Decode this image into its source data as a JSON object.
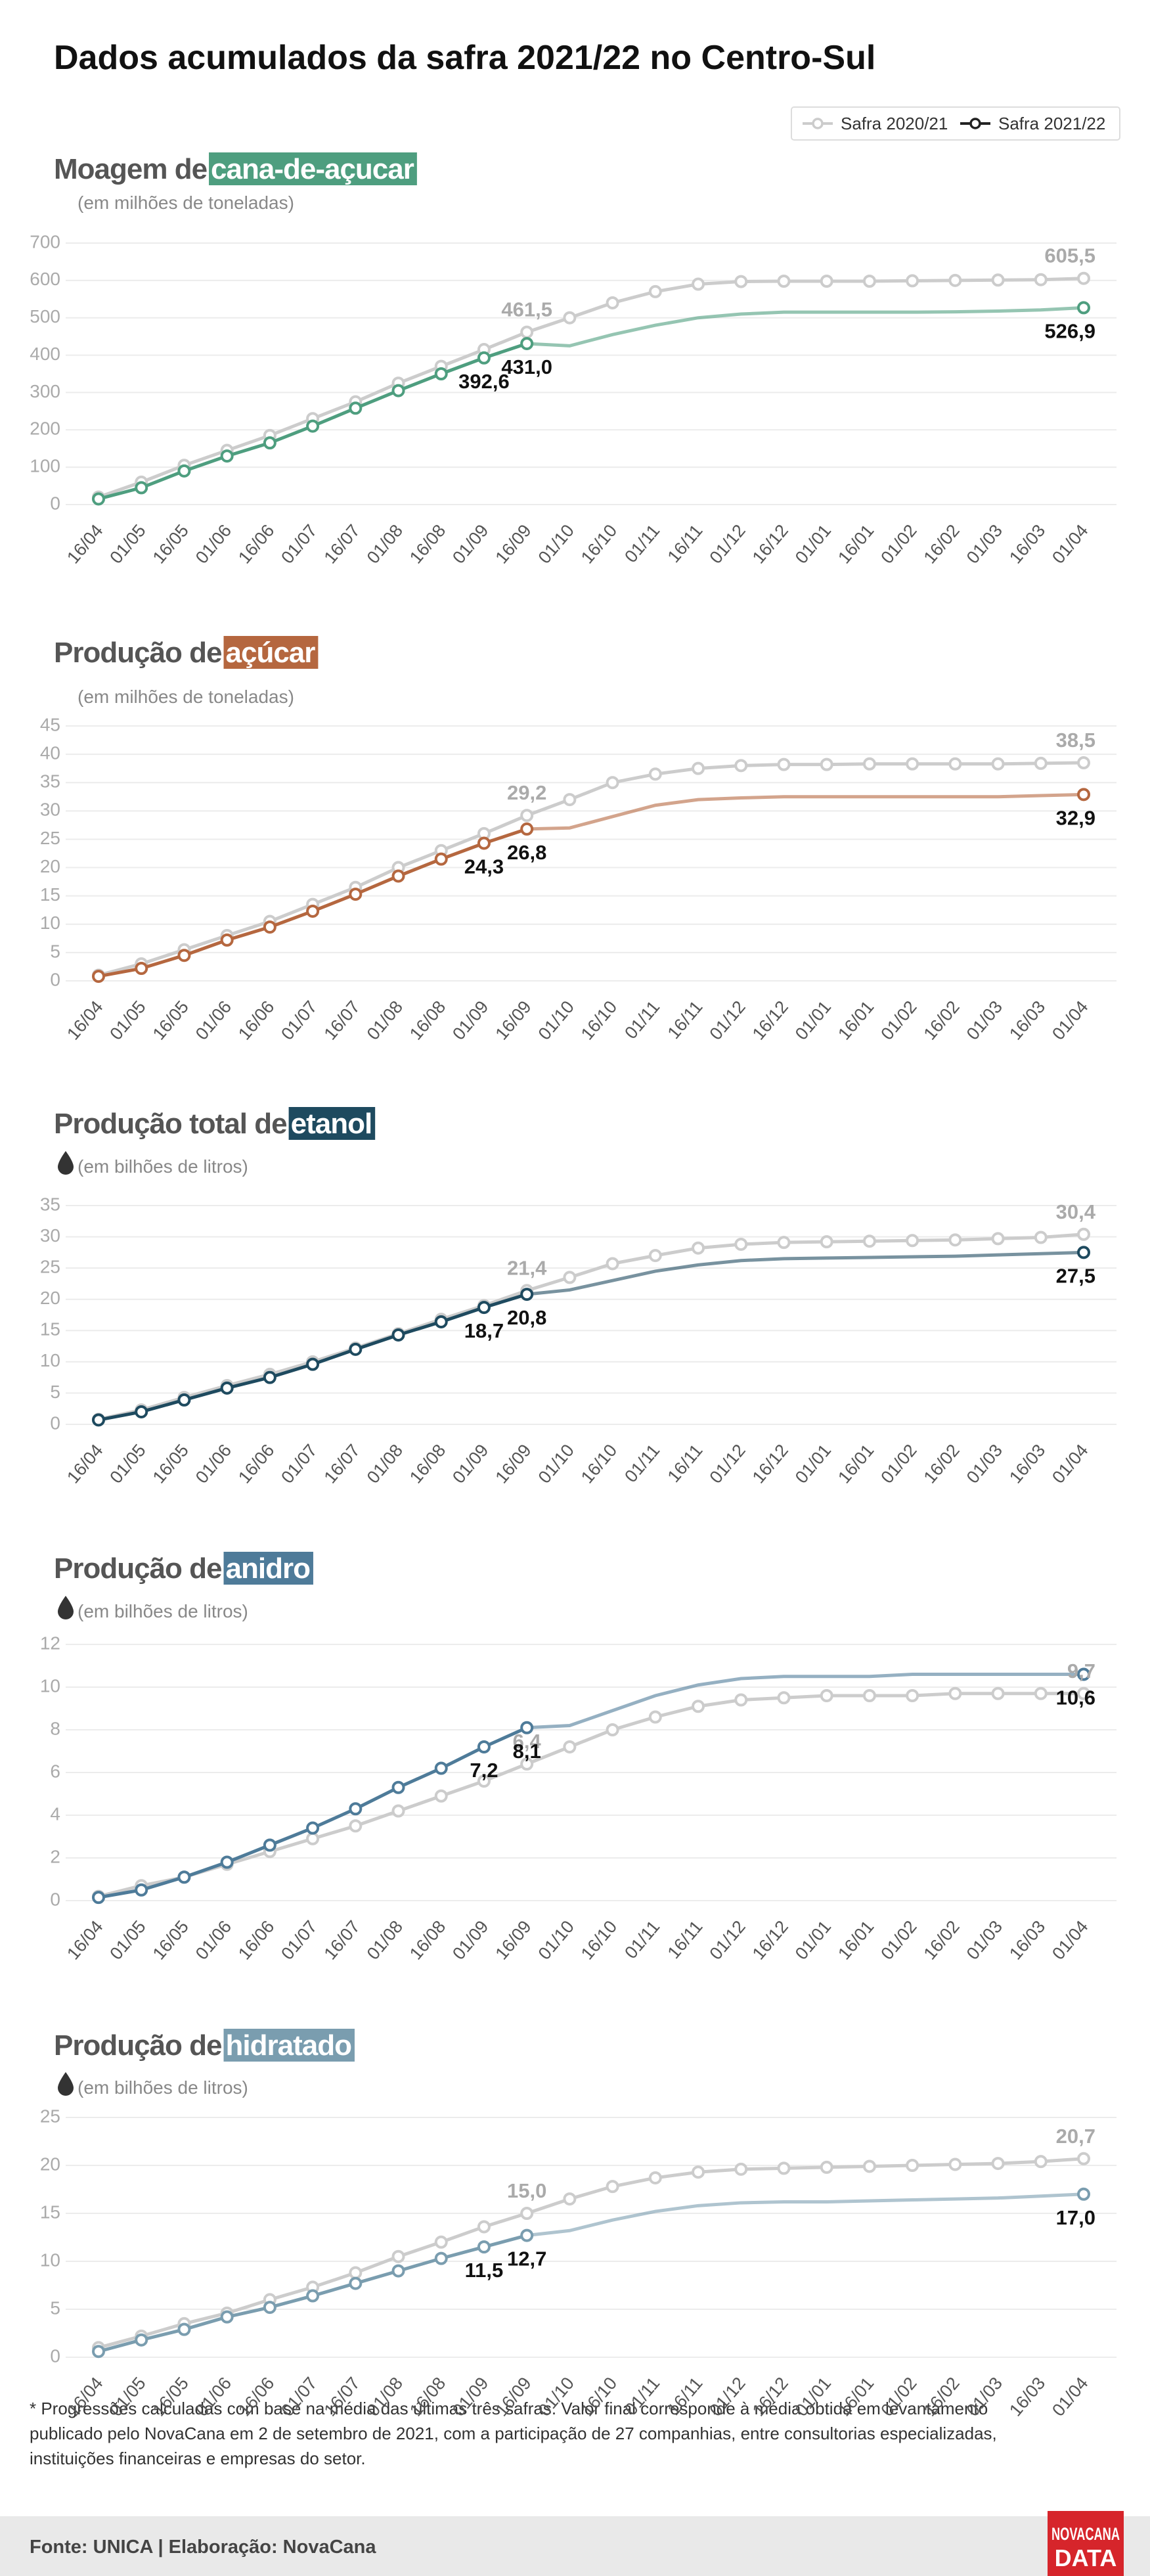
{
  "title": "Dados acumulados da safra 2021/22 no Centro-Sul",
  "footnote": [
    "* Progressões calculadas com base na média das últimas três safras. Valor final corresponde à média obtida em levantamento",
    "publicado pelo NovaCana em  2 de setembro de 2021, com a participação de 27 companhias, entre consultorias especializadas,",
    "instituições financeiras e empresas do setor."
  ],
  "source": "Fonte: UNICA | Elaboração: NovaCana",
  "logo": [
    "NOVACANA",
    "DATA"
  ],
  "chart_data": [
    {
      "type": "line",
      "title_prefix": "Moagem de",
      "title_highlight": "cana-de-açucar",
      "highlight_color": "#4e9e7f",
      "subtitle": "(em milhões de toneladas)",
      "categories": [
        "16/04",
        "01/05",
        "16/05",
        "01/06",
        "16/06",
        "01/07",
        "16/07",
        "01/08",
        "16/08",
        "01/09",
        "16/09",
        "01/10",
        "16/10",
        "01/11",
        "16/11",
        "01/12",
        "16/12",
        "01/01",
        "16/01",
        "01/02",
        "16/02",
        "01/03",
        "16/03",
        "01/04"
      ],
      "series": [
        {
          "name": "Safra 2020/21",
          "color": "#cccccc",
          "values": [
            20,
            60,
            105,
            145,
            185,
            230,
            275,
            325,
            370,
            415,
            461.5,
            500,
            540,
            570,
            590,
            597,
            598,
            598,
            598,
            599,
            600,
            601,
            602,
            605.5
          ],
          "value_labels": [
            null,
            null,
            null,
            null,
            null,
            null,
            null,
            null,
            null,
            null,
            "461,5",
            null,
            null,
            null,
            null,
            null,
            null,
            null,
            null,
            null,
            null,
            null,
            null,
            "605,5"
          ]
        },
        {
          "name": "Safra 2021/22",
          "color": "#4e9e7f",
          "values": [
            15,
            45,
            90,
            130,
            165,
            210,
            258,
            305,
            350,
            392.6,
            431.0,
            425,
            455,
            480,
            500,
            510,
            515,
            515,
            515,
            515,
            516,
            518,
            521,
            526.9
          ],
          "value_labels": [
            null,
            null,
            null,
            null,
            null,
            null,
            null,
            null,
            null,
            "392,6",
            "431,0",
            null,
            null,
            null,
            null,
            null,
            null,
            null,
            null,
            null,
            null,
            null,
            null,
            "526,9"
          ]
        }
      ],
      "ylim": [
        0,
        700
      ],
      "yticks": [
        0,
        100,
        200,
        300,
        400,
        500,
        600,
        700
      ],
      "grid": true
    },
    {
      "type": "line",
      "title_prefix": "Produção de",
      "title_highlight": "açúcar",
      "highlight_color": "#b5673f",
      "subtitle": "(em milhões de toneladas)",
      "categories": [
        "16/04",
        "01/05",
        "16/05",
        "01/06",
        "16/06",
        "01/07",
        "16/07",
        "01/08",
        "16/08",
        "01/09",
        "16/09",
        "01/10",
        "16/10",
        "01/11",
        "16/11",
        "01/12",
        "16/12",
        "01/01",
        "16/01",
        "01/02",
        "16/02",
        "01/03",
        "16/03",
        "01/04"
      ],
      "series": [
        {
          "name": "Safra 2020/21",
          "color": "#cccccc",
          "values": [
            1,
            3,
            5.5,
            8,
            10.5,
            13.5,
            16.5,
            20,
            23,
            26,
            29.2,
            32,
            35,
            36.5,
            37.5,
            38,
            38.2,
            38.2,
            38.3,
            38.3,
            38.3,
            38.3,
            38.4,
            38.5
          ],
          "value_labels": [
            null,
            null,
            null,
            null,
            null,
            null,
            null,
            null,
            null,
            null,
            "29,2",
            null,
            null,
            null,
            null,
            null,
            null,
            null,
            null,
            null,
            null,
            null,
            null,
            "38,5"
          ]
        },
        {
          "name": "Safra 2021/22",
          "color": "#b5673f",
          "values": [
            0.8,
            2.2,
            4.5,
            7.2,
            9.5,
            12.3,
            15.3,
            18.5,
            21.5,
            24.3,
            26.8,
            27,
            29,
            31,
            32,
            32.3,
            32.5,
            32.5,
            32.5,
            32.5,
            32.5,
            32.5,
            32.7,
            32.9
          ],
          "value_labels": [
            null,
            null,
            null,
            null,
            null,
            null,
            null,
            null,
            null,
            "24,3",
            "26,8",
            null,
            null,
            null,
            null,
            null,
            null,
            null,
            null,
            null,
            null,
            null,
            null,
            "32,9"
          ]
        }
      ],
      "ylim": [
        0,
        45
      ],
      "yticks": [
        0,
        5,
        10,
        15,
        20,
        25,
        30,
        35,
        40,
        45
      ],
      "grid": true
    },
    {
      "type": "line",
      "title_prefix": "Produção total de",
      "title_highlight": "etanol",
      "highlight_color": "#1e4a5f",
      "subtitle": "(em bilhões de litros)",
      "categories": [
        "16/04",
        "01/05",
        "16/05",
        "01/06",
        "16/06",
        "01/07",
        "16/07",
        "01/08",
        "16/08",
        "01/09",
        "16/09",
        "01/10",
        "16/10",
        "01/11",
        "16/11",
        "01/12",
        "16/12",
        "01/01",
        "16/01",
        "01/02",
        "16/02",
        "01/03",
        "16/03",
        "01/04"
      ],
      "series": [
        {
          "name": "Safra 2020/21",
          "color": "#cccccc",
          "values": [
            0.8,
            2.3,
            4.3,
            6.2,
            8,
            10,
            12.2,
            14.5,
            16.8,
            19,
            21.4,
            23.5,
            25.7,
            27,
            28.2,
            28.8,
            29.1,
            29.2,
            29.3,
            29.4,
            29.5,
            29.7,
            29.9,
            30.4
          ],
          "value_labels": [
            null,
            null,
            null,
            null,
            null,
            null,
            null,
            null,
            null,
            null,
            "21,4",
            null,
            null,
            null,
            null,
            null,
            null,
            null,
            null,
            null,
            null,
            null,
            null,
            "30,4"
          ]
        },
        {
          "name": "Safra 2021/22",
          "color": "#1e4a5f",
          "values": [
            0.7,
            2,
            3.9,
            5.8,
            7.5,
            9.6,
            12,
            14.3,
            16.4,
            18.7,
            20.8,
            21.5,
            23,
            24.5,
            25.5,
            26.2,
            26.5,
            26.6,
            26.7,
            26.8,
            26.9,
            27.1,
            27.3,
            27.5
          ],
          "value_labels": [
            null,
            null,
            null,
            null,
            null,
            null,
            null,
            null,
            null,
            "18,7",
            "20,8",
            null,
            null,
            null,
            null,
            null,
            null,
            null,
            null,
            null,
            null,
            null,
            null,
            "27,5"
          ]
        }
      ],
      "ylim": [
        0,
        35
      ],
      "yticks": [
        0,
        5,
        10,
        15,
        20,
        25,
        30,
        35
      ],
      "grid": true
    },
    {
      "type": "line",
      "title_prefix": "Produção de",
      "title_highlight": "anidro",
      "highlight_color": "#4e7b99",
      "subtitle": "(em bilhões de litros)",
      "categories": [
        "16/04",
        "01/05",
        "16/05",
        "01/06",
        "16/06",
        "01/07",
        "16/07",
        "01/08",
        "16/08",
        "01/09",
        "16/09",
        "01/10",
        "16/10",
        "01/11",
        "16/11",
        "01/12",
        "16/12",
        "01/01",
        "16/01",
        "01/02",
        "16/02",
        "01/03",
        "16/03",
        "01/04"
      ],
      "series": [
        {
          "name": "Safra 2020/21",
          "color": "#cccccc",
          "values": [
            0.2,
            0.7,
            1.1,
            1.7,
            2.3,
            2.9,
            3.5,
            4.2,
            4.9,
            5.6,
            6.4,
            7.2,
            8.0,
            8.6,
            9.1,
            9.4,
            9.5,
            9.6,
            9.6,
            9.6,
            9.7,
            9.7,
            9.7,
            9.7
          ],
          "value_labels": [
            null,
            null,
            null,
            null,
            null,
            null,
            null,
            null,
            null,
            null,
            "6,4",
            null,
            null,
            null,
            null,
            null,
            null,
            null,
            null,
            null,
            null,
            null,
            null,
            "9,7"
          ]
        },
        {
          "name": "Safra 2021/22",
          "color": "#4e7b99",
          "values": [
            0.15,
            0.5,
            1.1,
            1.8,
            2.6,
            3.4,
            4.3,
            5.3,
            6.2,
            7.2,
            8.1,
            8.2,
            8.9,
            9.6,
            10.1,
            10.4,
            10.5,
            10.5,
            10.5,
            10.6,
            10.6,
            10.6,
            10.6,
            10.6
          ],
          "value_labels": [
            null,
            null,
            null,
            null,
            null,
            null,
            null,
            null,
            null,
            "7,2",
            "8,1",
            null,
            null,
            null,
            null,
            null,
            null,
            null,
            null,
            null,
            null,
            null,
            null,
            "10,6"
          ]
        }
      ],
      "ylim": [
        0,
        12
      ],
      "yticks": [
        0,
        2,
        4,
        6,
        8,
        10,
        12
      ],
      "grid": true
    },
    {
      "type": "line",
      "title_prefix": "Produção de",
      "title_highlight": "hidratado",
      "highlight_color": "#7a9daf",
      "subtitle": "(em bilhões de litros)",
      "categories": [
        "16/04",
        "01/05",
        "16/05",
        "01/06",
        "16/06",
        "01/07",
        "16/07",
        "01/08",
        "16/08",
        "01/09",
        "16/09",
        "01/10",
        "16/10",
        "01/11",
        "16/11",
        "01/12",
        "16/12",
        "01/01",
        "16/01",
        "01/02",
        "16/02",
        "01/03",
        "16/03",
        "01/04"
      ],
      "series": [
        {
          "name": "Safra 2020/21",
          "color": "#cccccc",
          "values": [
            1,
            2.2,
            3.5,
            4.6,
            6,
            7.3,
            8.8,
            10.5,
            12,
            13.6,
            15.0,
            16.5,
            17.8,
            18.7,
            19.3,
            19.6,
            19.7,
            19.8,
            19.9,
            20.0,
            20.1,
            20.2,
            20.4,
            20.7
          ],
          "value_labels": [
            null,
            null,
            null,
            null,
            null,
            null,
            null,
            null,
            null,
            null,
            "15,0",
            null,
            null,
            null,
            null,
            null,
            null,
            null,
            null,
            null,
            null,
            null,
            null,
            "20,7"
          ]
        },
        {
          "name": "Safra 2021/22",
          "color": "#7a9daf",
          "values": [
            0.6,
            1.8,
            2.9,
            4.2,
            5.2,
            6.4,
            7.7,
            9.0,
            10.3,
            11.5,
            12.7,
            13.2,
            14.3,
            15.2,
            15.8,
            16.1,
            16.2,
            16.2,
            16.3,
            16.4,
            16.5,
            16.6,
            16.8,
            17.0
          ],
          "value_labels": [
            null,
            null,
            null,
            null,
            null,
            null,
            null,
            null,
            null,
            "11,5",
            "12,7",
            null,
            null,
            null,
            null,
            null,
            null,
            null,
            null,
            null,
            null,
            null,
            null,
            "17,0"
          ]
        }
      ],
      "ylim": [
        0,
        25
      ],
      "yticks": [
        0,
        5,
        10,
        15,
        20,
        25
      ],
      "grid": true
    }
  ]
}
